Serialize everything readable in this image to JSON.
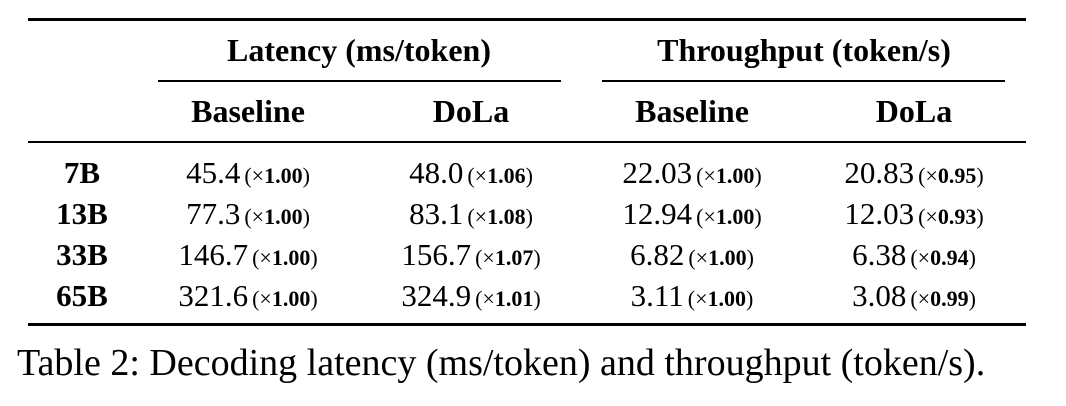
{
  "table": {
    "group_headers": [
      "Latency (ms/token)",
      "Throughput (token/s)"
    ],
    "sub_headers": [
      "Baseline",
      "DoLa",
      "Baseline",
      "DoLa"
    ],
    "rows": [
      {
        "model": "7B",
        "cells": [
          {
            "value": "45.4",
            "ratio": "1.00"
          },
          {
            "value": "48.0",
            "ratio": "1.06"
          },
          {
            "value": "22.03",
            "ratio": "1.00"
          },
          {
            "value": "20.83",
            "ratio": "0.95"
          }
        ]
      },
      {
        "model": "13B",
        "cells": [
          {
            "value": "77.3",
            "ratio": "1.00"
          },
          {
            "value": "83.1",
            "ratio": "1.08"
          },
          {
            "value": "12.94",
            "ratio": "1.00"
          },
          {
            "value": "12.03",
            "ratio": "0.93"
          }
        ]
      },
      {
        "model": "33B",
        "cells": [
          {
            "value": "146.7",
            "ratio": "1.00"
          },
          {
            "value": "156.7",
            "ratio": "1.07"
          },
          {
            "value": "6.82",
            "ratio": "1.00"
          },
          {
            "value": "6.38",
            "ratio": "0.94"
          }
        ]
      },
      {
        "model": "65B",
        "cells": [
          {
            "value": "321.6",
            "ratio": "1.00"
          },
          {
            "value": "324.9",
            "ratio": "1.01"
          },
          {
            "value": "3.11",
            "ratio": "1.00"
          },
          {
            "value": "3.08",
            "ratio": "0.99"
          }
        ]
      }
    ],
    "ratio_prefix": "(×",
    "ratio_suffix": ")"
  },
  "caption": "Table 2: Decoding latency (ms/token) and throughput (token/s)."
}
